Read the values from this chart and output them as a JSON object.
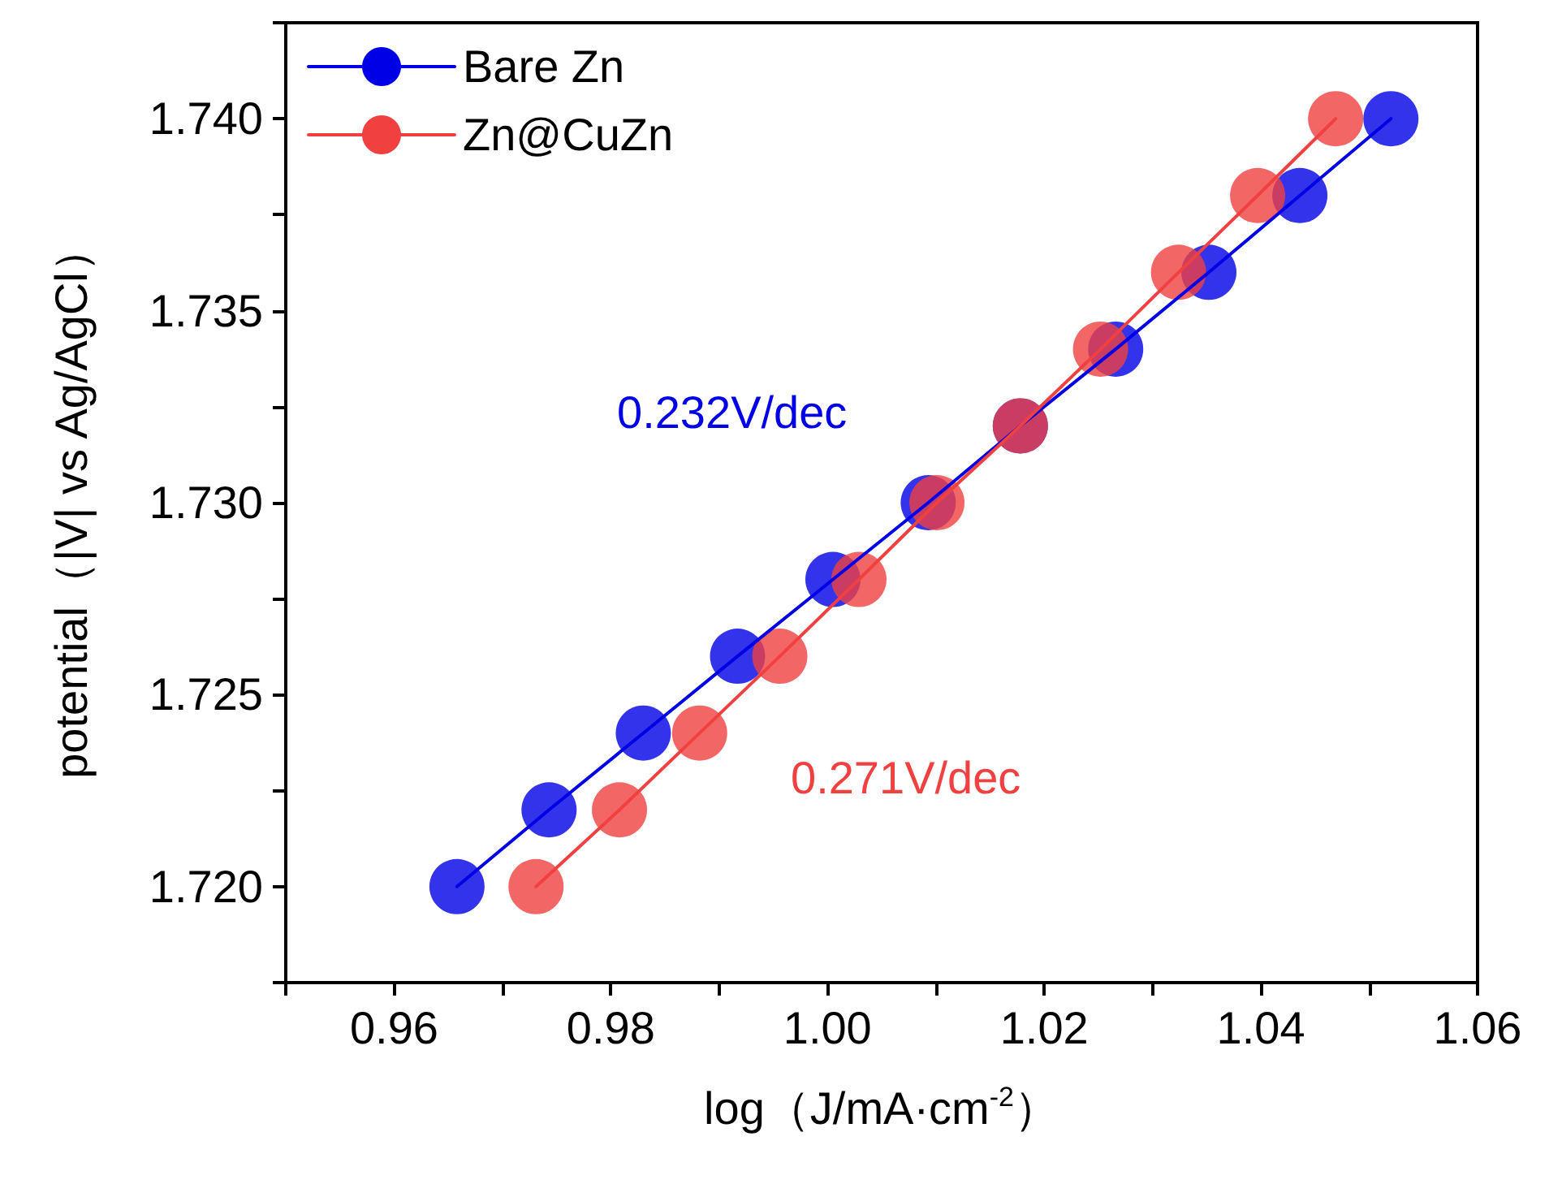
{
  "chart_data": {
    "type": "line",
    "xlabel": "log（J/mA·cm$^{-2}$）",
    "ylabel": "potential（|V| vs Ag/AgCl）",
    "series": [
      {
        "name": "Bare Zn",
        "color": "#0000e6",
        "x": [
          0.9658,
          0.9743,
          0.983,
          0.9917,
          1.0005,
          1.0093,
          1.0178,
          1.0266,
          1.0352,
          1.0436,
          1.052
        ],
        "values": [
          1.72,
          1.722,
          1.724,
          1.726,
          1.728,
          1.73,
          1.732,
          1.734,
          1.736,
          1.738,
          1.74
        ]
      },
      {
        "name": "Zn@CuZn",
        "color": "#f04040",
        "x": [
          0.9731,
          0.9808,
          0.9882,
          0.9956,
          1.0029,
          1.0101,
          1.0178,
          1.0252,
          1.0324,
          1.0397,
          1.0469
        ],
        "values": [
          1.72,
          1.722,
          1.724,
          1.726,
          1.728,
          1.73,
          1.732,
          1.734,
          1.736,
          1.738,
          1.74
        ]
      }
    ],
    "annotations": [
      "0.232V/dec",
      "0.271V/dec"
    ],
    "xlim": [
      0.95,
      1.06
    ],
    "xticks": [
      {
        "value": 0.95,
        "label": null
      },
      0.96,
      {
        "value": 0.97,
        "label": null
      },
      0.98,
      {
        "value": 0.99,
        "label": null
      },
      "1.00",
      {
        "value": 1.01,
        "label": null
      },
      1.02,
      {
        "value": 1.03,
        "label": null
      },
      1.04,
      {
        "value": 1.05,
        "label": null
      },
      1.06
    ],
    "ylim": [
      1.7175,
      1.7425
    ],
    "yticks": [
      {
        "value": 1.7175,
        "label": null
      },
      "1.720",
      {
        "value": 1.7225,
        "label": null
      },
      1.725,
      {
        "value": 1.7275,
        "label": null
      },
      "1.730",
      {
        "value": 1.7325,
        "label": null
      },
      1.735,
      {
        "value": 1.7375,
        "label": null
      },
      "1.740",
      {
        "value": 1.7425,
        "label": null
      }
    ],
    "marker": "circle",
    "line_style": "solid",
    "grid": false,
    "legend": "top left"
  }
}
